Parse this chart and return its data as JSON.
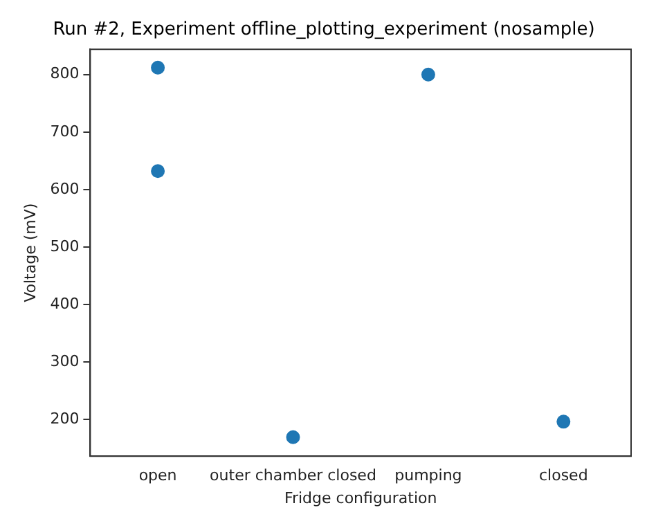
{
  "chart_data": {
    "type": "scatter",
    "title": "Run #2, Experiment offline_plotting_experiment (nosample)",
    "xlabel": "Fridge configuration",
    "ylabel": "Voltage (mV)",
    "categories": [
      "open",
      "outer chamber closed",
      "pumping",
      "closed"
    ],
    "series": [
      {
        "color": "#1f77b4",
        "x": [
          "open",
          "open",
          "outer chamber closed",
          "pumping",
          "closed"
        ],
        "values": [
          812,
          632,
          169,
          800,
          196
        ]
      }
    ],
    "ylim": [
      136,
      844
    ],
    "yticks": [
      200,
      300,
      400,
      500,
      600,
      700,
      800
    ],
    "grid": false,
    "legend": false,
    "marker": "circle"
  }
}
